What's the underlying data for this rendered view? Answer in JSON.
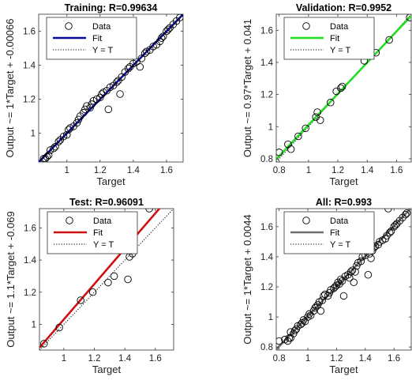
{
  "chart_data": [
    {
      "type": "scatter",
      "title": "Training: R=0.99634",
      "xlabel": "Target",
      "ylabel": "Output ~= 1*Target + -0.00066",
      "xlim": [
        0.83,
        1.7
      ],
      "ylim": [
        0.83,
        1.7
      ],
      "xticks": [
        "1",
        "1.2",
        "1.4",
        "1.6"
      ],
      "yticks": [
        "1",
        "1.2",
        "1.4",
        "1.6"
      ],
      "fit_color": "#0a0aa0",
      "fit": {
        "slope": 1.0,
        "intercept": -0.00066
      },
      "legend": {
        "position": "top-left",
        "entries": [
          "Data",
          "Fit",
          "Y = T"
        ]
      },
      "points": [
        [
          0.86,
          0.85
        ],
        [
          0.87,
          0.85
        ],
        [
          0.88,
          0.86
        ],
        [
          0.89,
          0.87
        ],
        [
          0.9,
          0.9
        ],
        [
          0.92,
          0.91
        ],
        [
          0.93,
          0.92
        ],
        [
          0.95,
          0.95
        ],
        [
          0.96,
          0.96
        ],
        [
          0.98,
          0.98
        ],
        [
          1.0,
          0.99
        ],
        [
          1.01,
          1.02
        ],
        [
          1.02,
          1.03
        ],
        [
          1.04,
          1.04
        ],
        [
          1.06,
          1.06
        ],
        [
          1.07,
          1.08
        ],
        [
          1.08,
          1.1
        ],
        [
          1.1,
          1.12
        ],
        [
          1.11,
          1.14
        ],
        [
          1.12,
          1.16
        ],
        [
          1.14,
          1.15
        ],
        [
          1.15,
          1.17
        ],
        [
          1.16,
          1.19
        ],
        [
          1.18,
          1.2
        ],
        [
          1.2,
          1.21
        ],
        [
          1.21,
          1.23
        ],
        [
          1.22,
          1.24
        ],
        [
          1.24,
          1.25
        ],
        [
          1.25,
          1.14
        ],
        [
          1.26,
          1.27
        ],
        [
          1.28,
          1.28
        ],
        [
          1.3,
          1.3
        ],
        [
          1.31,
          1.31
        ],
        [
          1.32,
          1.23
        ],
        [
          1.33,
          1.33
        ],
        [
          1.35,
          1.36
        ],
        [
          1.37,
          1.38
        ],
        [
          1.38,
          1.39
        ],
        [
          1.4,
          1.41
        ],
        [
          1.42,
          1.42
        ],
        [
          1.44,
          1.39
        ],
        [
          1.45,
          1.44
        ],
        [
          1.47,
          1.47
        ],
        [
          1.48,
          1.48
        ],
        [
          1.5,
          1.49
        ],
        [
          1.52,
          1.51
        ],
        [
          1.54,
          1.52
        ],
        [
          1.56,
          1.54
        ],
        [
          1.57,
          1.56
        ],
        [
          1.58,
          1.57
        ],
        [
          1.6,
          1.6
        ],
        [
          1.61,
          1.61
        ],
        [
          1.62,
          1.62
        ],
        [
          1.64,
          1.64
        ],
        [
          1.66,
          1.66
        ],
        [
          1.68,
          1.68
        ]
      ]
    },
    {
      "type": "scatter",
      "title": "Validation: R=0.9952",
      "xlabel": "Target",
      "ylabel": "Output ~= 0.97*Target + 0.041",
      "xlim": [
        0.78,
        1.7
      ],
      "ylim": [
        0.78,
        1.7
      ],
      "xticks": [
        "0.8",
        "1",
        "1.2",
        "1.4",
        "1.6"
      ],
      "yticks": [
        "0.8",
        "1",
        "1.2",
        "1.4",
        "1.6"
      ],
      "fit_color": "#22dd22",
      "fit": {
        "slope": 0.97,
        "intercept": 0.041
      },
      "legend": {
        "position": "top-left",
        "entries": [
          "Data",
          "Fit",
          "Y = T"
        ]
      },
      "points": [
        [
          0.8,
          0.84
        ],
        [
          0.86,
          0.89
        ],
        [
          0.88,
          0.86
        ],
        [
          0.93,
          0.94
        ],
        [
          0.98,
          0.99
        ],
        [
          1.05,
          1.06
        ],
        [
          1.06,
          1.09
        ],
        [
          1.08,
          1.04
        ],
        [
          1.15,
          1.15
        ],
        [
          1.19,
          1.22
        ],
        [
          1.22,
          1.24
        ],
        [
          1.23,
          1.25
        ],
        [
          1.38,
          1.41
        ],
        [
          1.46,
          1.46
        ],
        [
          1.55,
          1.54
        ],
        [
          1.69,
          1.68
        ]
      ]
    },
    {
      "type": "scatter",
      "title": "Test: R=0.96091",
      "xlabel": "Target",
      "ylabel": "Output ~= 1.1*Target + -0.069",
      "xlim": [
        0.84,
        1.72
      ],
      "ylim": [
        0.84,
        1.72
      ],
      "xticks": [
        "1",
        "1.2",
        "1.4",
        "1.6"
      ],
      "yticks": [
        "1",
        "1.2",
        "1.4",
        "1.6"
      ],
      "fit_color": "#d01010",
      "fit": {
        "slope": 1.1,
        "intercept": -0.069
      },
      "legend": {
        "position": "top-left",
        "entries": [
          "Data",
          "Fit",
          "Y = T"
        ]
      },
      "points": [
        [
          0.87,
          0.88
        ],
        [
          0.97,
          0.98
        ],
        [
          1.11,
          1.15
        ],
        [
          1.19,
          1.2
        ],
        [
          1.29,
          1.26
        ],
        [
          1.33,
          1.3
        ],
        [
          1.42,
          1.28
        ],
        [
          1.43,
          1.42
        ],
        [
          1.45,
          1.44
        ],
        [
          1.56,
          1.72
        ]
      ]
    },
    {
      "type": "scatter",
      "title": "All: R=0.993",
      "xlabel": "Target",
      "ylabel": "Output ~= 1*Target + 0.0044",
      "xlim": [
        0.78,
        1.72
      ],
      "ylim": [
        0.78,
        1.72
      ],
      "xticks": [
        "0.8",
        "1",
        "1.2",
        "1.4",
        "1.6"
      ],
      "yticks": [
        "0.8",
        "1",
        "1.2",
        "1.4",
        "1.6"
      ],
      "fit_color": "#6e6e6e",
      "fit": {
        "slope": 1.0,
        "intercept": 0.0044
      },
      "legend": {
        "position": "top-left",
        "entries": [
          "Data",
          "Fit",
          "Y = T"
        ]
      },
      "points": [
        [
          0.8,
          0.84
        ],
        [
          0.84,
          0.85
        ],
        [
          0.86,
          0.84
        ],
        [
          0.87,
          0.86
        ],
        [
          0.88,
          0.86
        ],
        [
          0.88,
          0.9
        ],
        [
          0.9,
          0.89
        ],
        [
          0.91,
          0.91
        ],
        [
          0.92,
          0.92
        ],
        [
          0.93,
          0.94
        ],
        [
          0.95,
          0.95
        ],
        [
          0.96,
          0.96
        ],
        [
          0.97,
          0.98
        ],
        [
          0.98,
          0.97
        ],
        [
          1.0,
          1.0
        ],
        [
          1.01,
          1.02
        ],
        [
          1.02,
          1.01
        ],
        [
          1.04,
          1.04
        ],
        [
          1.05,
          1.06
        ],
        [
          1.06,
          1.07
        ],
        [
          1.07,
          1.08
        ],
        [
          1.08,
          1.1
        ],
        [
          1.09,
          1.04
        ],
        [
          1.1,
          1.11
        ],
        [
          1.11,
          1.14
        ],
        [
          1.12,
          1.15
        ],
        [
          1.14,
          1.14
        ],
        [
          1.15,
          1.16
        ],
        [
          1.16,
          1.18
        ],
        [
          1.18,
          1.19
        ],
        [
          1.19,
          1.2
        ],
        [
          1.2,
          1.21
        ],
        [
          1.21,
          1.23
        ],
        [
          1.22,
          1.22
        ],
        [
          1.23,
          1.25
        ],
        [
          1.24,
          1.24
        ],
        [
          1.25,
          1.14
        ],
        [
          1.26,
          1.27
        ],
        [
          1.28,
          1.28
        ],
        [
          1.29,
          1.26
        ],
        [
          1.3,
          1.3
        ],
        [
          1.31,
          1.31
        ],
        [
          1.32,
          1.23
        ],
        [
          1.33,
          1.3
        ],
        [
          1.34,
          1.34
        ],
        [
          1.35,
          1.36
        ],
        [
          1.37,
          1.37
        ],
        [
          1.38,
          1.4
        ],
        [
          1.4,
          1.41
        ],
        [
          1.42,
          1.28
        ],
        [
          1.43,
          1.42
        ],
        [
          1.44,
          1.39
        ],
        [
          1.45,
          1.44
        ],
        [
          1.46,
          1.46
        ],
        [
          1.47,
          1.47
        ],
        [
          1.49,
          1.48
        ],
        [
          1.5,
          1.5
        ],
        [
          1.52,
          1.51
        ],
        [
          1.54,
          1.52
        ],
        [
          1.55,
          1.54
        ],
        [
          1.56,
          1.72
        ],
        [
          1.57,
          1.56
        ],
        [
          1.58,
          1.57
        ],
        [
          1.6,
          1.6
        ],
        [
          1.61,
          1.61
        ],
        [
          1.62,
          1.62
        ],
        [
          1.64,
          1.64
        ],
        [
          1.66,
          1.66
        ],
        [
          1.68,
          1.68
        ],
        [
          1.69,
          1.69
        ]
      ]
    }
  ]
}
